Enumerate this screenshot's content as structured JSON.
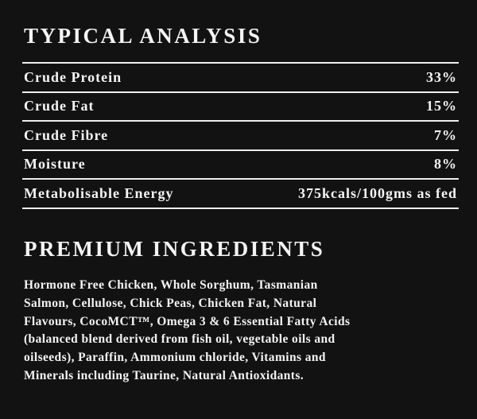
{
  "analysis": {
    "title": "TYPICAL ANALYSIS",
    "rows": [
      [
        "Crude Protein",
        "33%"
      ],
      [
        "Crude Fat",
        "15%"
      ],
      [
        "Crude Fibre",
        "7%"
      ],
      [
        "Moisture",
        "8%"
      ],
      [
        "Metabolisable Energy",
        "375kcals/100gms as fed"
      ]
    ]
  },
  "ingredients": {
    "title": "PREMIUM INGREDIENTS",
    "lines": [
      "Hormone Free Chicken, Whole Sorghum, Tasmanian",
      "Salmon, Cellulose, Chick Peas, Chicken Fat, Natural",
      "Flavours, CocoMCT™, Omega 3 & 6 Essential Fatty Acids",
      "(balanced blend derived  from fish oil, vegetable oils and",
      "oilseeds), Paraffin, Ammonium chloride, Vitamins and",
      "Minerals including Taurine, Natural Antioxidants."
    ]
  }
}
